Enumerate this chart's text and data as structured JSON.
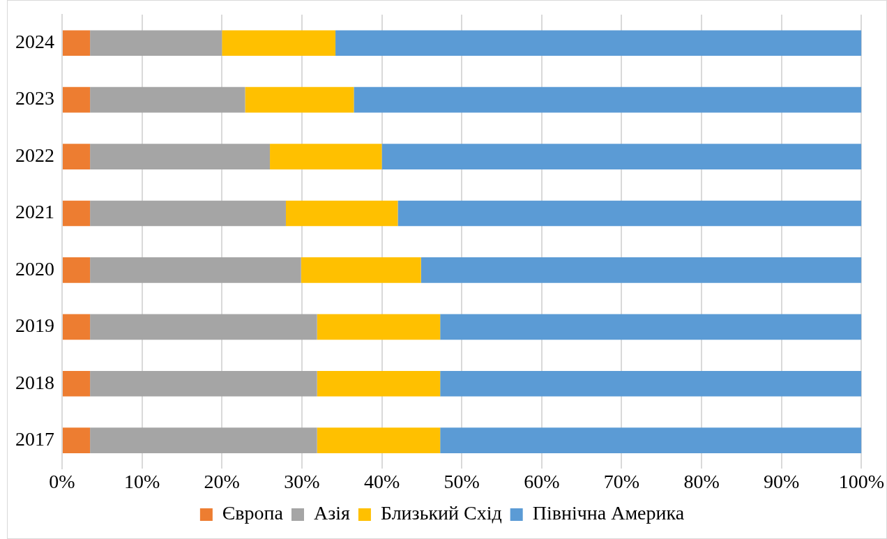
{
  "chart_data": {
    "type": "bar",
    "orientation": "horizontal",
    "stacked": true,
    "categories": [
      "2024",
      "2023",
      "2022",
      "2021",
      "2020",
      "2019",
      "2018",
      "2017"
    ],
    "series": [
      {
        "name": "Європа",
        "color": "#ed7d31",
        "values": [
          3.5,
          3.5,
          3.5,
          3.5,
          3.5,
          3.5,
          3.5,
          3.5
        ]
      },
      {
        "name": "Азія",
        "color": "#a5a5a5",
        "values": [
          16.5,
          19.4,
          22.5,
          24.5,
          26.4,
          28.4,
          28.4,
          28.4
        ]
      },
      {
        "name": "Близький Схід",
        "color": "#ffc000",
        "values": [
          14.2,
          13.6,
          14,
          14,
          15,
          15.4,
          15.4,
          15.4
        ]
      },
      {
        "name": "Північна Америка",
        "color": "#5b9bd5",
        "values": [
          65.8,
          63.5,
          60,
          58,
          55.1,
          52.7,
          52.7,
          52.7
        ]
      }
    ],
    "xlim": [
      0,
      100
    ],
    "xticks": [
      {
        "value": 0,
        "label": "0%"
      },
      {
        "value": 10,
        "label": "10%"
      },
      {
        "value": 20,
        "label": "20%"
      },
      {
        "value": 30,
        "label": "30%"
      },
      {
        "value": 40,
        "label": "40%"
      },
      {
        "value": 50,
        "label": "50%"
      },
      {
        "value": 60,
        "label": "60%"
      },
      {
        "value": 70,
        "label": "70%"
      },
      {
        "value": 80,
        "label": "80%"
      },
      {
        "value": 90,
        "label": "90%"
      },
      {
        "value": 100,
        "label": "100%"
      }
    ],
    "grid": "x",
    "legend": "bottom"
  }
}
